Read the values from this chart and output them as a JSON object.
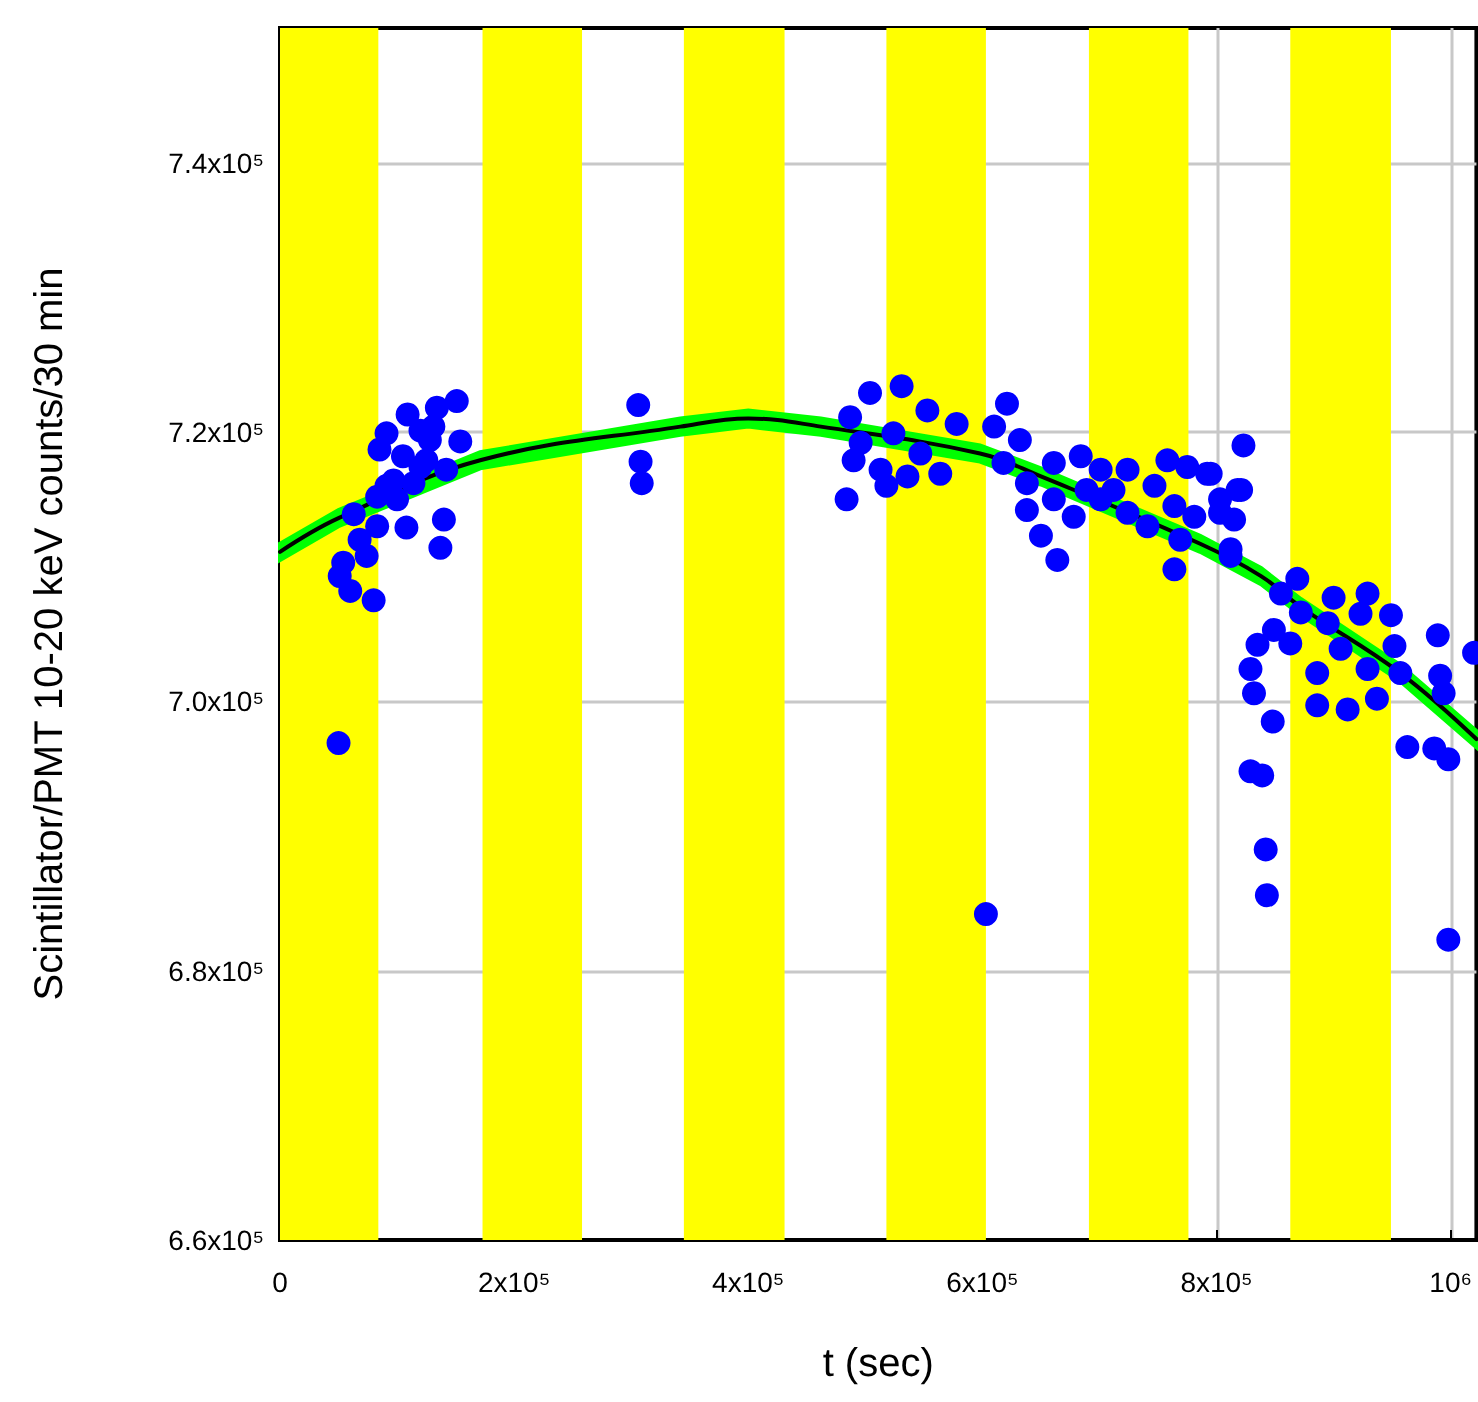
{
  "chart_data": {
    "type": "scatter",
    "xlabel": "t (sec)",
    "ylabel": "Scintillator/PMT 10-20 keV counts/30 min",
    "xlim": [
      0,
      1022000
    ],
    "ylim": [
      660000,
      750000
    ],
    "xticks": [
      0,
      {
        "value": 200000,
        "label": "2x10⁵"
      },
      {
        "value": 400000,
        "label": "4x10⁵"
      },
      {
        "value": 600000,
        "label": "6x10⁵"
      },
      {
        "value": 800000,
        "label": "8x10⁵"
      },
      {
        "value": 1000000,
        "label": "10⁶"
      }
    ],
    "yticks": [
      {
        "value": 660000,
        "label": "6.6x10⁵"
      },
      {
        "value": 680000,
        "label": "6.8x10⁵"
      },
      {
        "value": 700000,
        "label": "7.0x10⁵"
      },
      {
        "value": 720000,
        "label": "7.2x10⁵"
      },
      {
        "value": 740000,
        "label": "7.4x10⁵"
      }
    ],
    "grid": true,
    "marker": "circle",
    "bands": [
      {
        "axis": "x",
        "from": 0,
        "to": 84000,
        "color": "#ffff00"
      },
      {
        "axis": "x",
        "from": 173000,
        "to": 258000,
        "color": "#ffff00"
      },
      {
        "axis": "x",
        "from": 345000,
        "to": 431000,
        "color": "#ffff00"
      },
      {
        "axis": "x",
        "from": 518000,
        "to": 603000,
        "color": "#ffff00"
      },
      {
        "axis": "x",
        "from": 691000,
        "to": 776000,
        "color": "#ffff00"
      },
      {
        "axis": "x",
        "from": 863000,
        "to": 949000,
        "color": "#ffff00"
      }
    ],
    "series": [
      {
        "color": "#0000ff",
        "x": [
          151000,
          134000,
          109000,
          91000,
          85000,
          120000,
          128000,
          154000,
          105000,
          125000,
          142000,
          114000,
          97000,
          83000,
          100000,
          63000,
          83000,
          68000,
          74000,
          54000,
          51000,
          60000,
          80000,
          108000,
          140000,
          137000,
          50000,
          306000,
          308000,
          309000,
          131000,
          120000,
          91000,
          504000,
          531000,
          487000,
          553000,
          578000,
          496000,
          524000,
          547000,
          490000,
          513000,
          536000,
          564000,
          518000,
          484000,
          621000,
          610000,
          632000,
          618000,
          638000,
          661000,
          684000,
          701000,
          724000,
          758000,
          775000,
          792000,
          823000,
          638000,
          661000,
          678000,
          650000,
          664000,
          701000,
          724000,
          747000,
          741000,
          764000,
          769000,
          764000,
          803000,
          818000,
          815000,
          812000,
          712000,
          689000,
          781000,
          795000,
          821000,
          803000,
          812000,
          869000,
          855000,
          900000,
          929000,
          949000,
          923000,
          872000,
          849000,
          835000,
          863000,
          895000,
          906000,
          952000,
          957000,
          989000,
          1020000,
          829000,
          886000,
          929000,
          832000,
          886000,
          912000,
          937000,
          991000,
          994000,
          848000,
          963000,
          986000,
          998000,
          829000,
          839000,
          842000,
          843000,
          998000,
          603000
        ],
        "values": [
          722300,
          721800,
          721300,
          719900,
          718700,
          720100,
          719400,
          719300,
          718200,
          717900,
          717200,
          716200,
          716400,
          715200,
          715000,
          713900,
          713000,
          712000,
          710800,
          710300,
          709300,
          708200,
          707500,
          712900,
          713500,
          711400,
          696900,
          722000,
          717800,
          716200,
          720400,
          717400,
          716000,
          722900,
          723400,
          721100,
          721600,
          720600,
          719200,
          719900,
          718400,
          717900,
          717200,
          716700,
          716900,
          716000,
          715000,
          722100,
          720400,
          719400,
          717700,
          716200,
          717700,
          718200,
          717200,
          717200,
          717900,
          717400,
          716900,
          719000,
          714200,
          715000,
          713700,
          712300,
          710500,
          715000,
          714000,
          716000,
          713000,
          714500,
          712000,
          709800,
          715000,
          715700,
          713500,
          711300,
          715700,
          715700,
          713700,
          716900,
          715700,
          714000,
          710800,
          709100,
          708000,
          707700,
          708000,
          706400,
          706500,
          706600,
          705300,
          704200,
          704300,
          705800,
          703900,
          704100,
          702100,
          704900,
          703600,
          702400,
          702100,
          702400,
          700600,
          699700,
          699400,
          700200,
          701900,
          700600,
          698500,
          696600,
          696500,
          695700,
          694800,
          694500,
          689000,
          685600,
          682300,
          684200
        ]
      },
      {
        "type": "line",
        "color": "#000000",
        "marker": "none",
        "x": [
          0,
          50000,
          171000,
          342000,
          400000,
          462000,
          598000,
          650000,
          786000,
          838000,
          872000,
          957000,
          1022000
        ],
        "values": [
          711100,
          713600,
          717900,
          720400,
          721000,
          720400,
          718400,
          716700,
          711700,
          709300,
          707000,
          702100,
          697200
        ],
        "lower": [
          710500,
          713000,
          717300,
          719800,
          720400,
          719800,
          717800,
          716100,
          711100,
          708700,
          706400,
          701500,
          696600
        ],
        "upper": [
          711700,
          714200,
          718500,
          721000,
          721600,
          721000,
          719000,
          717300,
          712300,
          709900,
          707600,
          702700,
          697800
        ]
      }
    ]
  }
}
